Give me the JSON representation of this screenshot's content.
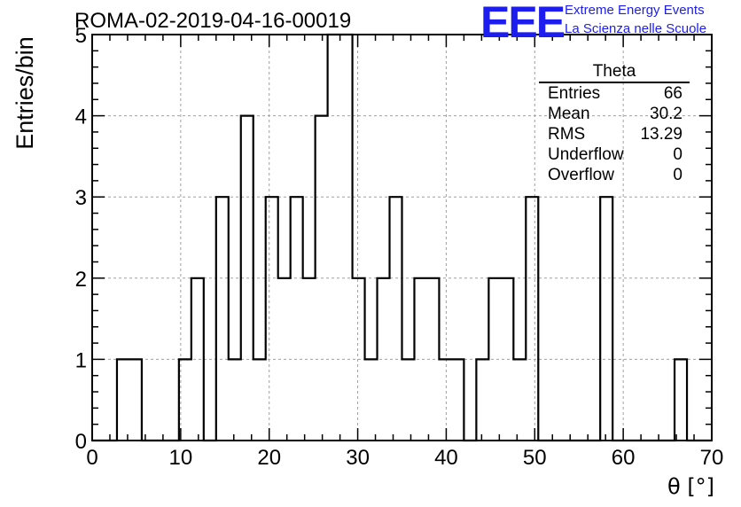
{
  "header": {
    "run_title": "ROMA-02-2019-04-16-00019",
    "logo_text": "EEE",
    "logo_line1": "Extreme Energy Events",
    "logo_line2": "La Scienza nelle Scuole",
    "logo_color": "#1d1df0"
  },
  "stats_box": {
    "title": "Theta",
    "rows": [
      {
        "label": "Entries",
        "value": "66"
      },
      {
        "label": "Mean",
        "value": "30.2"
      },
      {
        "label": "RMS",
        "value": "13.29"
      },
      {
        "label": "Underflow",
        "value": "0"
      },
      {
        "label": "Overflow",
        "value": "0"
      }
    ]
  },
  "chart_data": {
    "type": "bar",
    "subtype": "step-histogram",
    "title": "ROMA-02-2019-04-16-00019",
    "xlabel": "θ [°]",
    "ylabel": "Entries/bin",
    "xlim": [
      0,
      70
    ],
    "ylim": [
      0,
      5
    ],
    "grid": true,
    "bin_edges": [
      0,
      1.4,
      2.8,
      4.2,
      5.6,
      7.0,
      8.4,
      9.8,
      11.2,
      12.6,
      14.0,
      15.4,
      16.8,
      18.2,
      19.6,
      21.0,
      22.4,
      23.8,
      25.2,
      26.6,
      28.0,
      29.4,
      30.8,
      32.2,
      33.6,
      35.0,
      36.4,
      37.8,
      39.2,
      40.6,
      42.0,
      43.4,
      44.8,
      46.2,
      47.6,
      49.0,
      50.4,
      51.8,
      53.2,
      54.6,
      56.0,
      57.4,
      58.8,
      60.2,
      61.6,
      63.0,
      64.4,
      65.8,
      67.2,
      68.6,
      70.0
    ],
    "values": [
      0,
      0,
      1,
      1,
      0,
      0,
      0,
      1,
      2,
      0,
      3,
      1,
      4,
      1,
      3,
      2,
      3,
      2,
      4,
      5,
      5,
      2,
      1,
      2,
      3,
      1,
      2,
      2,
      1,
      1,
      0,
      1,
      2,
      2,
      1,
      3,
      0,
      0,
      0,
      0,
      0,
      3,
      0,
      0,
      0,
      0,
      0,
      1,
      0,
      0
    ],
    "xticks": [
      0,
      10,
      20,
      30,
      40,
      50,
      60,
      70
    ],
    "yticks": [
      0,
      1,
      2,
      3,
      4,
      5
    ],
    "line_color": "#000000",
    "grid_color": "#a0a0a0"
  }
}
